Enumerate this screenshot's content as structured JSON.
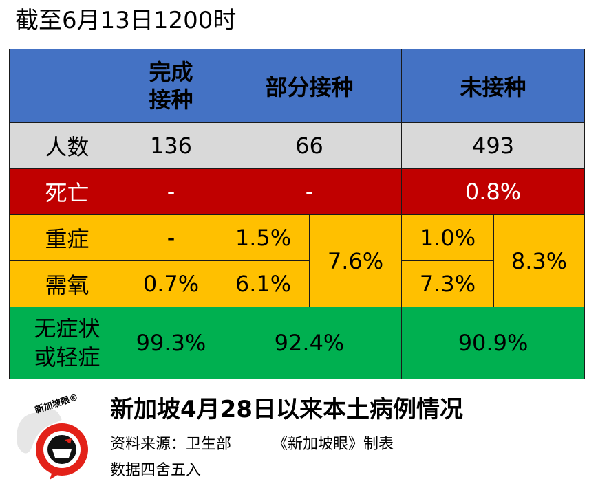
{
  "header": {
    "date_title": "截至6月13日1200时"
  },
  "table": {
    "columns": [
      "完成接种",
      "部分接种",
      "未接种"
    ],
    "columns_display": [
      "完成",
      "接种"
    ],
    "rows": {
      "count": {
        "label": "人数",
        "values": [
          "136",
          "66",
          "493"
        ]
      },
      "death": {
        "label": "死亡",
        "values": [
          "-",
          "-",
          "0.8%"
        ]
      },
      "severe": {
        "label": "重症",
        "values": [
          "-",
          "1.5%",
          "1.0%"
        ]
      },
      "oxygen": {
        "label": "需氧",
        "values": [
          "0.7%",
          "6.1%",
          "7.3%"
        ]
      },
      "combined": {
        "values": [
          "7.6%",
          "8.3%"
        ]
      },
      "mild": {
        "label_line1": "无症状",
        "label_line2": "或轻症",
        "values": [
          "99.3%",
          "92.4%",
          "90.9%"
        ]
      }
    }
  },
  "footer": {
    "title": "新加坡4月28日以来本土病例情况",
    "source": "资料来源：卫生部",
    "credit": "《新加坡眼》制表",
    "note": "数据四舍五入",
    "logo_text": "新加坡眼®"
  },
  "chart_data": {
    "type": "table",
    "title": "新加坡4月28日以来本土病例情况",
    "subtitle": "截至6月13日1200时",
    "columns": [
      "完成接种",
      "部分接种",
      "未接种"
    ],
    "rows": [
      {
        "label": "人数",
        "values": [
          136,
          66,
          493
        ]
      },
      {
        "label": "死亡",
        "values": [
          "-",
          "-",
          "0.8%"
        ]
      },
      {
        "label": "重症",
        "values": [
          "-",
          "1.5%",
          "1.0%"
        ]
      },
      {
        "label": "需氧",
        "values": [
          "0.7%",
          "6.1%",
          "7.3%"
        ]
      },
      {
        "label": "重症+需氧",
        "values": [
          "0.7%",
          "7.6%",
          "8.3%"
        ]
      },
      {
        "label": "无症状或轻症",
        "values": [
          "99.3%",
          "92.4%",
          "90.9%"
        ]
      }
    ]
  }
}
